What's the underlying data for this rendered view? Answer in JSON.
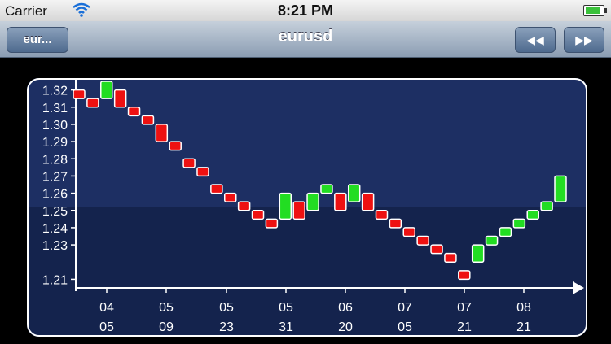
{
  "status_bar": {
    "carrier": "Carrier",
    "time": "8:21 PM"
  },
  "nav": {
    "back_label": "eur...",
    "title": "eurusd",
    "rewind_icon": "rewind-icon",
    "forward_icon": "fast-forward-icon"
  },
  "chart_data": {
    "type": "candlestick",
    "ylim": [
      1.205,
      1.325
    ],
    "y_ticks": [
      "1.32",
      "1.31",
      "1.30",
      "1.29",
      "1.28",
      "1.27",
      "1.26",
      "1.25",
      "1.24",
      "1.23",
      "1.21"
    ],
    "x_ticks": [
      {
        "top": "04",
        "bottom": "05"
      },
      {
        "top": "05",
        "bottom": "09"
      },
      {
        "top": "05",
        "bottom": "23"
      },
      {
        "top": "05",
        "bottom": "31"
      },
      {
        "top": "06",
        "bottom": "20"
      },
      {
        "top": "07",
        "bottom": "05"
      },
      {
        "top": "07",
        "bottom": "21"
      },
      {
        "top": "08",
        "bottom": "21"
      }
    ],
    "colors": {
      "up": "#22dd22",
      "down": "#ee1111",
      "plot_bg": "#1a2a5c",
      "plot_bg_lower": "#15244f",
      "axis": "#ffffff"
    },
    "candles": [
      {
        "open": 1.32,
        "close": 1.315,
        "dir": "down"
      },
      {
        "open": 1.315,
        "close": 1.31,
        "dir": "down"
      },
      {
        "open": 1.315,
        "close": 1.325,
        "dir": "up"
      },
      {
        "open": 1.32,
        "close": 1.31,
        "dir": "down"
      },
      {
        "open": 1.31,
        "close": 1.305,
        "dir": "down"
      },
      {
        "open": 1.305,
        "close": 1.3,
        "dir": "down"
      },
      {
        "open": 1.3,
        "close": 1.29,
        "dir": "down"
      },
      {
        "open": 1.29,
        "close": 1.285,
        "dir": "down"
      },
      {
        "open": 1.28,
        "close": 1.275,
        "dir": "down"
      },
      {
        "open": 1.275,
        "close": 1.27,
        "dir": "down"
      },
      {
        "open": 1.265,
        "close": 1.26,
        "dir": "down"
      },
      {
        "open": 1.26,
        "close": 1.255,
        "dir": "down"
      },
      {
        "open": 1.255,
        "close": 1.25,
        "dir": "down"
      },
      {
        "open": 1.25,
        "close": 1.245,
        "dir": "down"
      },
      {
        "open": 1.245,
        "close": 1.24,
        "dir": "down"
      },
      {
        "open": 1.245,
        "close": 1.26,
        "dir": "up"
      },
      {
        "open": 1.255,
        "close": 1.245,
        "dir": "down"
      },
      {
        "open": 1.25,
        "close": 1.26,
        "dir": "up"
      },
      {
        "open": 1.26,
        "close": 1.265,
        "dir": "up"
      },
      {
        "open": 1.26,
        "close": 1.25,
        "dir": "down"
      },
      {
        "open": 1.255,
        "close": 1.265,
        "dir": "up"
      },
      {
        "open": 1.26,
        "close": 1.25,
        "dir": "down"
      },
      {
        "open": 1.25,
        "close": 1.245,
        "dir": "down"
      },
      {
        "open": 1.245,
        "close": 1.24,
        "dir": "down"
      },
      {
        "open": 1.24,
        "close": 1.235,
        "dir": "down"
      },
      {
        "open": 1.235,
        "close": 1.23,
        "dir": "down"
      },
      {
        "open": 1.23,
        "close": 1.225,
        "dir": "down"
      },
      {
        "open": 1.225,
        "close": 1.22,
        "dir": "down"
      },
      {
        "open": 1.215,
        "close": 1.21,
        "dir": "down"
      },
      {
        "open": 1.22,
        "close": 1.23,
        "dir": "up"
      },
      {
        "open": 1.23,
        "close": 1.235,
        "dir": "up"
      },
      {
        "open": 1.235,
        "close": 1.24,
        "dir": "up"
      },
      {
        "open": 1.24,
        "close": 1.245,
        "dir": "up"
      },
      {
        "open": 1.245,
        "close": 1.25,
        "dir": "up"
      },
      {
        "open": 1.25,
        "close": 1.255,
        "dir": "up"
      },
      {
        "open": 1.255,
        "close": 1.27,
        "dir": "up"
      }
    ]
  }
}
